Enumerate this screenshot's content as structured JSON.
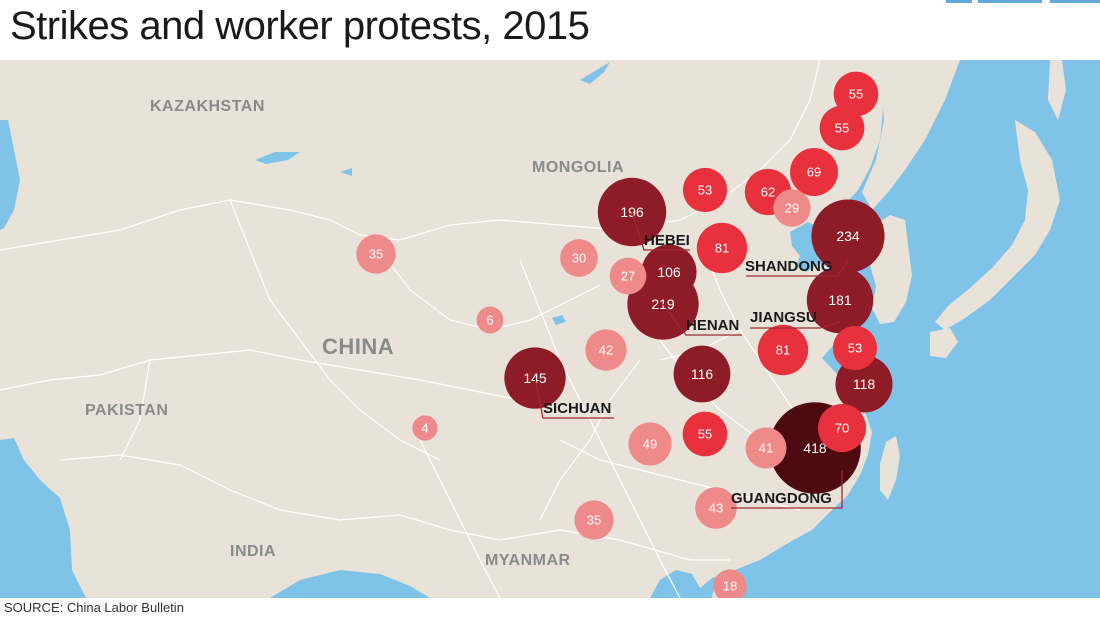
{
  "title": "Strikes and worker protests, 2015",
  "source": "SOURCE: China Labor Bulletin",
  "colors": {
    "land": "#e9e2d9",
    "water": "#7fc3e8",
    "border": "#ffffff",
    "low": "#ee8a8a",
    "mid": "#e8313d",
    "high": "#8e1c26",
    "highest": "#4d0a0f",
    "leader": "#a0282f"
  },
  "countries": {
    "kazakhstan": "KAZAKHSTAN",
    "mongolia": "MONGOLIA",
    "china": "CHINA",
    "pakistan": "PAKISTAN",
    "india": "INDIA",
    "myanmar": "MYANMAR"
  },
  "provinces": [
    {
      "name": "HEBEI",
      "value": 196
    },
    {
      "name": "SHANDONG",
      "value": 234
    },
    {
      "name": "HENAN",
      "value": 219
    },
    {
      "name": "JIANGSU",
      "value": 181
    },
    {
      "name": "SICHUAN",
      "value": 145
    },
    {
      "name": "GUANGDONG",
      "value": 418
    }
  ],
  "markers": [
    {
      "value": 55
    },
    {
      "value": 55
    },
    {
      "value": 69
    },
    {
      "value": 53
    },
    {
      "value": 62
    },
    {
      "value": 29
    },
    {
      "value": 196
    },
    {
      "value": 81
    },
    {
      "value": 234
    },
    {
      "value": 35
    },
    {
      "value": 30
    },
    {
      "value": 27
    },
    {
      "value": 106
    },
    {
      "value": 219
    },
    {
      "value": 181
    },
    {
      "value": 6
    },
    {
      "value": 42
    },
    {
      "value": 81
    },
    {
      "value": 53
    },
    {
      "value": 145
    },
    {
      "value": 116
    },
    {
      "value": 118
    },
    {
      "value": 4
    },
    {
      "value": 49
    },
    {
      "value": 55
    },
    {
      "value": 41
    },
    {
      "value": 418
    },
    {
      "value": 70
    },
    {
      "value": 43
    },
    {
      "value": 35
    },
    {
      "value": 18
    }
  ]
}
